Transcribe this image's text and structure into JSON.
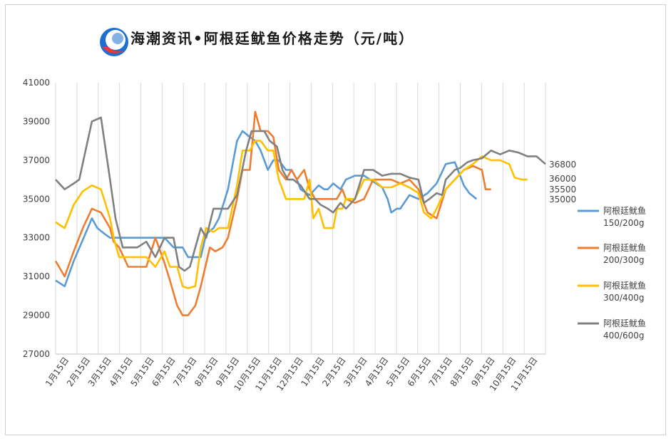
{
  "chart_data": {
    "type": "line",
    "title": "海潮资讯•阿根廷鱿鱼价格走势（元/吨）",
    "xlabel": "",
    "ylabel": "",
    "ylim": [
      27000,
      41000
    ],
    "y_ticks": [
      "41000",
      "39000",
      "37000",
      "35000",
      "33000",
      "31000",
      "29000",
      "27000"
    ],
    "x_tick_labels": [
      "1月15日",
      "2月15日",
      "3月15日",
      "4月15日",
      "5月15日",
      "6月15日",
      "7月15日",
      "8月15日",
      "9月15日",
      "10月15日",
      "11月15日",
      "12月15日",
      "1月15日",
      "2月15日",
      "3月15日",
      "4月15日",
      "5月15日",
      "6月15日",
      "7月15日",
      "8月15日",
      "9月15日",
      "10月15日",
      "11月15日"
    ],
    "grid": "vertical",
    "legend_placement": "right",
    "end_labels": [
      "36800",
      "36000",
      "35500",
      "35000"
    ],
    "series": [
      {
        "name": "阿根廷鱿鱼\n150/200g",
        "color": "#5b9bd5",
        "points": [
          [
            0,
            30800
          ],
          [
            0.5,
            30500
          ],
          [
            1,
            31800
          ],
          [
            1.5,
            32900
          ],
          [
            2,
            34000
          ],
          [
            2.3,
            33500
          ],
          [
            2.7,
            33200
          ],
          [
            3,
            33000
          ],
          [
            5,
            33000
          ],
          [
            6,
            33000
          ],
          [
            6.5,
            32500
          ],
          [
            7,
            32500
          ],
          [
            7.3,
            32000
          ],
          [
            7.7,
            32000
          ],
          [
            8,
            32000
          ],
          [
            8.3,
            33200
          ],
          [
            8.7,
            33500
          ],
          [
            9,
            34000
          ],
          [
            9.5,
            35500
          ],
          [
            10,
            38000
          ],
          [
            10.3,
            38500
          ],
          [
            10.7,
            38200
          ],
          [
            11,
            38000
          ],
          [
            11.3,
            37500
          ],
          [
            11.7,
            36500
          ],
          [
            12,
            37000
          ],
          [
            12.3,
            37000
          ],
          [
            12.7,
            36500
          ],
          [
            13,
            36500
          ],
          [
            13.3,
            36000
          ],
          [
            13.5,
            35500
          ],
          [
            14,
            35200
          ],
          [
            14.5,
            35700
          ],
          [
            14.8,
            35500
          ],
          [
            15,
            35500
          ],
          [
            15.3,
            35800
          ],
          [
            15.7,
            35500
          ],
          [
            16,
            36000
          ],
          [
            16.5,
            36200
          ],
          [
            17,
            36200
          ],
          [
            17.5,
            35900
          ],
          [
            18,
            35600
          ],
          [
            18.3,
            35000
          ],
          [
            18.5,
            34300
          ],
          [
            18.8,
            34500
          ],
          [
            19,
            34500
          ],
          [
            19.5,
            35200
          ],
          [
            20,
            35000
          ],
          [
            20.5,
            35300
          ],
          [
            21,
            35800
          ],
          [
            21.5,
            36800
          ],
          [
            22,
            36900
          ],
          [
            22.5,
            35700
          ],
          [
            22.8,
            35300
          ],
          [
            23.2,
            35000
          ]
        ]
      },
      {
        "name": "阿根廷鱿鱼\n200/300g",
        "color": "#ed7d31",
        "points": [
          [
            0,
            31800
          ],
          [
            0.5,
            31000
          ],
          [
            1,
            32300
          ],
          [
            1.5,
            33500
          ],
          [
            2,
            34500
          ],
          [
            2.5,
            34300
          ],
          [
            3,
            33500
          ],
          [
            3.2,
            32800
          ],
          [
            3.5,
            32500
          ],
          [
            4,
            31500
          ],
          [
            5,
            31500
          ],
          [
            5.5,
            33000
          ],
          [
            6,
            31700
          ],
          [
            6.3,
            30800
          ],
          [
            6.7,
            29500
          ],
          [
            7,
            29000
          ],
          [
            7.3,
            29000
          ],
          [
            7.7,
            29500
          ],
          [
            8,
            30500
          ],
          [
            8.5,
            32500
          ],
          [
            8.8,
            32300
          ],
          [
            9.2,
            32500
          ],
          [
            9.5,
            33000
          ],
          [
            10,
            35000
          ],
          [
            10.3,
            36500
          ],
          [
            10.7,
            36500
          ],
          [
            11,
            39500
          ],
          [
            11.3,
            38500
          ],
          [
            11.7,
            38500
          ],
          [
            12,
            38200
          ],
          [
            12.3,
            36500
          ],
          [
            12.7,
            36000
          ],
          [
            13,
            36500
          ],
          [
            13.3,
            36000
          ],
          [
            13.7,
            36500
          ],
          [
            14,
            35500
          ],
          [
            14.3,
            35000
          ],
          [
            15,
            35000
          ],
          [
            15.5,
            35000
          ],
          [
            15.8,
            35500
          ],
          [
            16,
            35000
          ],
          [
            16.5,
            34800
          ],
          [
            17,
            35000
          ],
          [
            17.5,
            36000
          ],
          [
            18,
            36000
          ],
          [
            18.5,
            36000
          ],
          [
            19,
            35800
          ],
          [
            19.5,
            36000
          ],
          [
            20,
            35500
          ],
          [
            20.5,
            34300
          ],
          [
            21,
            34000
          ],
          [
            21.5,
            35500
          ],
          [
            22,
            36000
          ],
          [
            22.5,
            36500
          ],
          [
            23,
            36700
          ],
          [
            23.5,
            36500
          ],
          [
            23.7,
            35500
          ],
          [
            24,
            35500
          ]
        ]
      },
      {
        "name": "阿根廷鱿鱼\n300/400g",
        "color": "#ffc000",
        "points": [
          [
            0,
            33800
          ],
          [
            0.5,
            33500
          ],
          [
            1,
            34700
          ],
          [
            1.5,
            35400
          ],
          [
            2,
            35700
          ],
          [
            2.5,
            35500
          ],
          [
            3,
            34000
          ],
          [
            3.2,
            33000
          ],
          [
            3.5,
            32000
          ],
          [
            5,
            32000
          ],
          [
            5.5,
            31500
          ],
          [
            6,
            32300
          ],
          [
            6.3,
            31500
          ],
          [
            6.7,
            31500
          ],
          [
            7,
            30500
          ],
          [
            7.3,
            30400
          ],
          [
            7.7,
            30500
          ],
          [
            8,
            32500
          ],
          [
            8.3,
            33500
          ],
          [
            8.7,
            33300
          ],
          [
            9,
            33500
          ],
          [
            9.5,
            33500
          ],
          [
            10,
            35700
          ],
          [
            10.3,
            37500
          ],
          [
            10.7,
            37500
          ],
          [
            11,
            38000
          ],
          [
            11.3,
            38000
          ],
          [
            11.7,
            37500
          ],
          [
            12,
            37500
          ],
          [
            12.3,
            36000
          ],
          [
            12.7,
            35000
          ],
          [
            13,
            35000
          ],
          [
            13.3,
            35000
          ],
          [
            13.7,
            35000
          ],
          [
            14,
            36000
          ],
          [
            14.2,
            34000
          ],
          [
            14.5,
            34500
          ],
          [
            14.8,
            33500
          ],
          [
            15.3,
            33500
          ],
          [
            15.5,
            34500
          ],
          [
            15.8,
            34500
          ],
          [
            16,
            35000
          ],
          [
            16.5,
            35000
          ],
          [
            17,
            36000
          ],
          [
            17.5,
            36000
          ],
          [
            18,
            35600
          ],
          [
            18.5,
            35600
          ],
          [
            19,
            35800
          ],
          [
            19.5,
            35600
          ],
          [
            20,
            35300
          ],
          [
            20.3,
            34300
          ],
          [
            20.7,
            34000
          ],
          [
            21,
            34500
          ],
          [
            21.5,
            35500
          ],
          [
            22,
            36000
          ],
          [
            22.5,
            36500
          ],
          [
            23,
            36800
          ],
          [
            23.5,
            37200
          ],
          [
            24,
            37000
          ],
          [
            24.5,
            37000
          ],
          [
            25,
            36800
          ],
          [
            25.3,
            36100
          ],
          [
            25.7,
            36000
          ],
          [
            26,
            36000
          ]
        ]
      },
      {
        "name": "阿根廷鱿鱼\n400/600g",
        "color": "#808080",
        "points": [
          [
            0,
            36000
          ],
          [
            0.5,
            35500
          ],
          [
            1,
            35800
          ],
          [
            1.3,
            36000
          ],
          [
            2,
            39000
          ],
          [
            2.5,
            39200
          ],
          [
            3,
            36000
          ],
          [
            3.3,
            34000
          ],
          [
            3.7,
            32500
          ],
          [
            4,
            32500
          ],
          [
            4.5,
            32500
          ],
          [
            5,
            32800
          ],
          [
            5.5,
            32000
          ],
          [
            6,
            33000
          ],
          [
            6.5,
            33000
          ],
          [
            6.8,
            31500
          ],
          [
            7.1,
            31300
          ],
          [
            7.4,
            31500
          ],
          [
            8,
            33500
          ],
          [
            8.3,
            33000
          ],
          [
            8.7,
            34500
          ],
          [
            9,
            34500
          ],
          [
            9.5,
            34500
          ],
          [
            10,
            35200
          ],
          [
            10.5,
            37500
          ],
          [
            10.8,
            38500
          ],
          [
            11.1,
            38500
          ],
          [
            11.5,
            38500
          ],
          [
            11.8,
            38000
          ],
          [
            12.2,
            37700
          ],
          [
            12.5,
            36500
          ],
          [
            12.8,
            36000
          ],
          [
            13.1,
            36000
          ],
          [
            13.5,
            35700
          ],
          [
            14,
            35000
          ],
          [
            14.3,
            35000
          ],
          [
            14.6,
            34700
          ],
          [
            15,
            34500
          ],
          [
            15.3,
            34300
          ],
          [
            15.7,
            34800
          ],
          [
            16,
            34500
          ],
          [
            16.5,
            35000
          ],
          [
            17,
            36500
          ],
          [
            17.5,
            36500
          ],
          [
            18,
            36200
          ],
          [
            18.5,
            36300
          ],
          [
            19,
            36300
          ],
          [
            19.5,
            36100
          ],
          [
            20,
            36000
          ],
          [
            20.3,
            34800
          ],
          [
            20.6,
            35000
          ],
          [
            21,
            35300
          ],
          [
            21.3,
            35200
          ],
          [
            21.5,
            36000
          ],
          [
            22,
            36500
          ],
          [
            22.3,
            36600
          ],
          [
            22.7,
            36900
          ],
          [
            23,
            37000
          ],
          [
            23.5,
            37100
          ],
          [
            24,
            37500
          ],
          [
            24.5,
            37300
          ],
          [
            25,
            37500
          ],
          [
            25.5,
            37400
          ],
          [
            26,
            37200
          ],
          [
            26.5,
            37200
          ],
          [
            27,
            36800
          ]
        ]
      }
    ]
  }
}
